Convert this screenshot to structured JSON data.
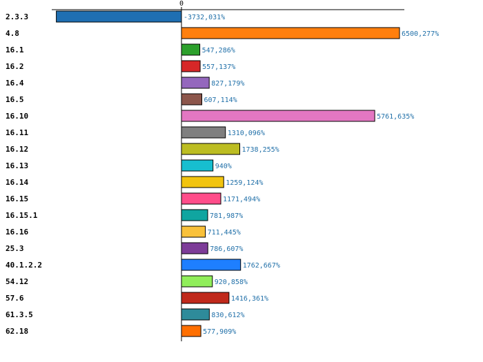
{
  "chart_data": {
    "type": "bar",
    "orientation": "horizontal",
    "zero_tick_label": "0",
    "categories": [
      "2.3.3",
      "4.8",
      "16.1",
      "16.2",
      "16.4",
      "16.5",
      "16.10",
      "16.11",
      "16.12",
      "16.13",
      "16.14",
      "16.15",
      "16.15.1",
      "16.16",
      "25.3",
      "40.1.2.2",
      "54.12",
      "57.6",
      "61.3.5",
      "62.18"
    ],
    "values": [
      -3732.031,
      6500.277,
      547.286,
      557.137,
      827.179,
      607.114,
      5761.635,
      1310.096,
      1738.255,
      940,
      1259.124,
      1171.494,
      781.987,
      711.445,
      786.607,
      1762.667,
      920.858,
      1416.361,
      830.612,
      577.909
    ],
    "labels": [
      "-3732,031%",
      "6500,277%",
      "547,286%",
      "557,137%",
      "827,179%",
      "607,114%",
      "5761,635%",
      "1310,096%",
      "1738,255%",
      "940%",
      "1259,124%",
      "1171,494%",
      "781,987%",
      "711,445%",
      "786,607%",
      "1762,667%",
      "920,858%",
      "1416,361%",
      "830,612%",
      "577,909%"
    ],
    "colors": [
      "#1f6fb2",
      "#ff7f0e",
      "#2ca02c",
      "#d62728",
      "#9467bd",
      "#8c564b",
      "#e377c2",
      "#7f7f7f",
      "#bcbd22",
      "#17becf",
      "#f1c40f",
      "#ff4d8a",
      "#10a5a0",
      "#f9c13a",
      "#7d3c98",
      "#1e7fff",
      "#90ee5a",
      "#c0291b",
      "#2e8b9a",
      "#ff6f00"
    ],
    "value_label_color": "#1f6fa8",
    "xlim": [
      -3732.031,
      6500.277
    ],
    "grid": false,
    "legend": "none"
  }
}
